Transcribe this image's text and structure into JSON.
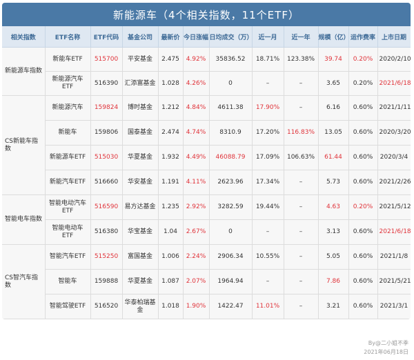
{
  "title": "新能源车（4个相关指数，11个ETF）",
  "headers": [
    "相关指数",
    "ETF名称",
    "ETF代码",
    "基金公司",
    "最新价",
    "今日涨幅",
    "日均成交（万）",
    "近一月",
    "近一年",
    "规模（亿）",
    "运作费率",
    "上市日期"
  ],
  "groups": [
    {
      "index": "新能源车指数",
      "rows": [
        {
          "name": "新能车ETF",
          "code": "515700",
          "company": "平安基金",
          "price": "2.475",
          "change": "4.92%",
          "volume": "35836.52",
          "month": "18.71%",
          "year": "123.38%",
          "scale": "39.74",
          "fee": "0.20%",
          "date": "2020/2/10"
        },
        {
          "name": "新能源汽车ETF",
          "code": "516390",
          "company": "汇添富基金",
          "price": "1.028",
          "change": "4.26%",
          "volume": "0",
          "month": "–",
          "year": "–",
          "scale": "3.65",
          "fee": "0.20%",
          "date": "2021/6/18"
        }
      ]
    },
    {
      "index": "CS新能车指数",
      "rows": [
        {
          "name": "新能源汽车",
          "code": "159824",
          "company": "博时基金",
          "price": "1.212",
          "change": "4.84%",
          "volume": "4611.38",
          "month": "17.90%",
          "year": "–",
          "scale": "6.16",
          "fee": "0.60%",
          "date": "2021/1/11"
        },
        {
          "name": "新能车",
          "code": "159806",
          "company": "国泰基金",
          "price": "2.474",
          "change": "4.74%",
          "volume": "8310.9",
          "month": "17.20%",
          "year": "116.83%",
          "scale": "13.05",
          "fee": "0.60%",
          "date": "2020/3/20"
        },
        {
          "name": "新能源车ETF",
          "code": "515030",
          "company": "华夏基金",
          "price": "1.932",
          "change": "4.49%",
          "volume": "46088.79",
          "month": "17.09%",
          "year": "106.63%",
          "scale": "61.44",
          "fee": "0.60%",
          "date": "2020/3/4"
        },
        {
          "name": "新能汽车ETF",
          "code": "516660",
          "company": "华安基金",
          "price": "1.191",
          "change": "4.11%",
          "volume": "2623.96",
          "month": "17.34%",
          "year": "–",
          "scale": "5.73",
          "fee": "0.60%",
          "date": "2021/2/26"
        }
      ]
    },
    {
      "index": "智能电车指数",
      "rows": [
        {
          "name": "智能电动汽车ETF",
          "code": "516590",
          "company": "易方达基金",
          "price": "1.235",
          "change": "2.92%",
          "volume": "3282.59",
          "month": "19.44%",
          "year": "–",
          "scale": "4.63",
          "fee": "0.20%",
          "date": "2021/5/12"
        },
        {
          "name": "智能电动车ETF",
          "code": "516380",
          "company": "华宝基金",
          "price": "1.04",
          "change": "2.67%",
          "volume": "0",
          "month": "–",
          "year": "–",
          "scale": "3.13",
          "fee": "0.60%",
          "date": "2021/6/18"
        }
      ]
    },
    {
      "index": "CS智汽车指数",
      "rows": [
        {
          "name": "智能汽车ETF",
          "code": "515250",
          "company": "富国基金",
          "price": "1.006",
          "change": "2.24%",
          "volume": "2906.34",
          "month": "10.55%",
          "year": "–",
          "scale": "5.05",
          "fee": "0.60%",
          "date": "2021/1/8"
        },
        {
          "name": "智能车",
          "code": "159888",
          "company": "华夏基金",
          "price": "1.087",
          "change": "2.07%",
          "volume": "1964.94",
          "month": "–",
          "year": "–",
          "scale": "7.86",
          "fee": "0.60%",
          "date": "2021/5/21"
        },
        {
          "name": "智能驾驶ETF",
          "code": "516520",
          "company": "华泰柏瑞基金",
          "price": "1.018",
          "change": "1.90%",
          "volume": "1422.47",
          "month": "11.01%",
          "year": "–",
          "scale": "3.21",
          "fee": "0.60%",
          "date": "2021/3/1"
        }
      ]
    }
  ],
  "highlights": {
    "code": [
      "515700",
      "159824",
      "515030",
      "516590",
      "515250"
    ],
    "month": [
      "17.90%",
      "11.01%"
    ],
    "year": [
      "116.83%"
    ],
    "volume": [
      "46088.79"
    ],
    "scale": [
      "39.74",
      "61.44",
      "4.63",
      "7.86"
    ],
    "fee": [
      "0.20%",
      "0.20%"
    ],
    "date": [
      "2021/6/18"
    ]
  },
  "highlight_cells": {
    "codes": [
      [
        0,
        0
      ],
      [
        1,
        0
      ],
      [
        1,
        2
      ],
      [
        2,
        0
      ],
      [
        3,
        0
      ]
    ],
    "month": [
      [
        1,
        0
      ],
      [
        3,
        2
      ]
    ],
    "year": [
      [
        1,
        1
      ]
    ],
    "volume": [
      [
        1,
        2
      ]
    ],
    "scale": [
      [
        0,
        0
      ],
      [
        1,
        2
      ],
      [
        2,
        0
      ],
      [
        3,
        1
      ]
    ],
    "fee": [
      [
        0,
        0
      ],
      [
        2,
        0
      ]
    ],
    "date": [
      [
        0,
        1
      ],
      [
        2,
        1
      ]
    ]
  },
  "colors": {
    "header_bg": "#4a79a6",
    "subheader_bg": "#dfe8f2",
    "highlight": "#e0333a"
  },
  "footer": {
    "by": "By@二小姐不季",
    "date": "2021年06月18日"
  }
}
